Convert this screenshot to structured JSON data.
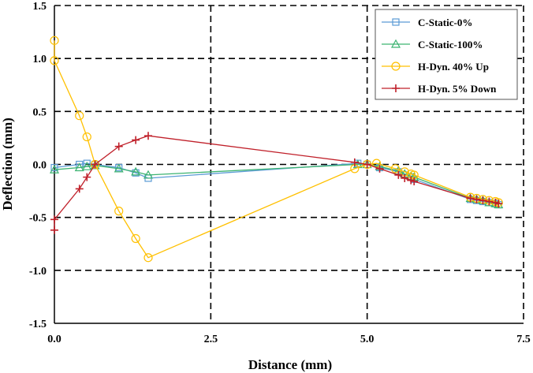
{
  "chart_data": {
    "type": "line",
    "title": "",
    "xlabel": "Distance (mm)",
    "ylabel": "Deflection (mm)",
    "xlim": [
      0.0,
      7.5
    ],
    "ylim": [
      -1.5,
      1.5
    ],
    "xticks": [
      "0.0",
      "2.5",
      "5.0",
      "7.5"
    ],
    "yticks": [
      "1.5",
      "1.0",
      "0.5",
      "0.0",
      "-0.5",
      "-1.0",
      "-1.5"
    ],
    "grid": "dashed black at major ticks",
    "legend_position": "top-right",
    "series": [
      {
        "name": "C-Static-0%",
        "color": "#5b9bd5",
        "marker": "square",
        "x": [
          0.0,
          0.4,
          0.52,
          0.65,
          1.03,
          1.3,
          1.5,
          4.85,
          5.0,
          5.2,
          5.5,
          5.6,
          5.7,
          5.75,
          6.65,
          6.75,
          6.85,
          6.95,
          7.05,
          7.1
        ],
        "y": [
          -0.03,
          0.0,
          0.01,
          0.0,
          -0.03,
          -0.08,
          -0.13,
          0.01,
          0.0,
          -0.03,
          -0.07,
          -0.1,
          -0.12,
          -0.14,
          -0.33,
          -0.34,
          -0.35,
          -0.36,
          -0.37,
          -0.38
        ]
      },
      {
        "name": "C-Static-100%",
        "color": "#3cb371",
        "marker": "triangle",
        "x": [
          0.0,
          0.4,
          0.52,
          0.65,
          1.03,
          1.3,
          1.5,
          4.85,
          5.0,
          5.2,
          5.5,
          5.6,
          5.7,
          5.75,
          6.65,
          6.75,
          6.85,
          6.95,
          7.05,
          7.1
        ],
        "y": [
          -0.05,
          -0.03,
          -0.02,
          -0.01,
          -0.04,
          -0.07,
          -0.1,
          0.0,
          0.0,
          -0.02,
          -0.06,
          -0.09,
          -0.11,
          -0.12,
          -0.32,
          -0.33,
          -0.34,
          -0.36,
          -0.37,
          -0.38
        ]
      },
      {
        "name": "H-Dyn. 40% Up",
        "color": "#ffc000",
        "marker": "circle",
        "x": [
          0.0,
          0.0,
          0.4,
          0.52,
          0.65,
          1.03,
          1.3,
          1.5,
          4.8,
          5.0,
          5.15,
          5.45,
          5.6,
          5.7,
          5.75,
          6.65,
          6.75,
          6.85,
          6.95,
          7.05,
          7.1
        ],
        "y": [
          1.17,
          0.98,
          0.46,
          0.26,
          0.0,
          -0.44,
          -0.7,
          -0.88,
          -0.04,
          0.0,
          0.01,
          -0.04,
          -0.07,
          -0.09,
          -0.1,
          -0.31,
          -0.32,
          -0.33,
          -0.34,
          -0.35,
          -0.36
        ]
      },
      {
        "name": "H-Dyn. 5% Down",
        "color": "#c0202a",
        "marker": "plus",
        "x": [
          0.0,
          0.0,
          0.4,
          0.52,
          0.65,
          1.03,
          1.3,
          1.5,
          4.8,
          5.0,
          5.2,
          5.5,
          5.6,
          5.7,
          5.75,
          6.65,
          6.75,
          6.85,
          6.95,
          7.05,
          7.1
        ],
        "y": [
          -0.62,
          -0.52,
          -0.23,
          -0.12,
          0.0,
          0.17,
          0.23,
          0.27,
          0.02,
          0.0,
          -0.04,
          -0.1,
          -0.13,
          -0.15,
          -0.16,
          -0.32,
          -0.33,
          -0.34,
          -0.35,
          -0.36,
          -0.37
        ]
      }
    ]
  }
}
